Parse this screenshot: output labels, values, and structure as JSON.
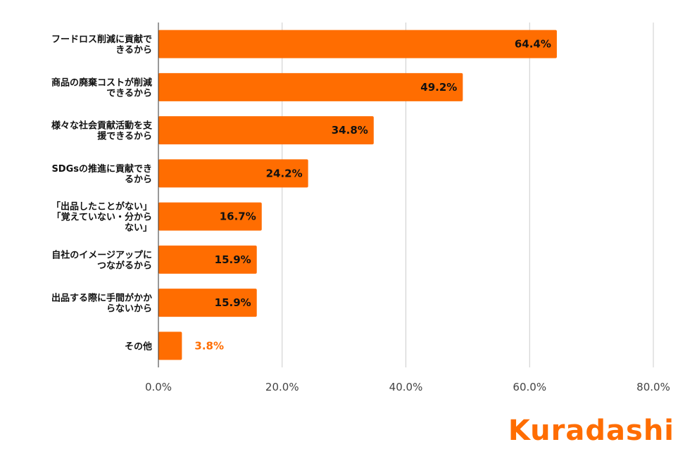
{
  "chart_data": {
    "type": "bar",
    "orientation": "horizontal",
    "categories": [
      [
        "フードロス削減に貢献で",
        "きるから"
      ],
      [
        "商品の廃棄コストが削減",
        "できるから"
      ],
      [
        "様々な社会貢献活動を支",
        "援できるから"
      ],
      [
        "SDGsの推進に貢献でき",
        "るから"
      ],
      [
        "「出品したことがない」",
        "「覚えていない・分から",
        "ない」"
      ],
      [
        "自社のイメージアップに",
        "つながるから"
      ],
      [
        "出品する際に手間がかか",
        "らないから"
      ],
      [
        "その他"
      ]
    ],
    "values": [
      64.4,
      49.2,
      34.8,
      24.2,
      16.7,
      15.9,
      15.9,
      3.8
    ],
    "value_labels": [
      "64.4%",
      "49.2%",
      "34.8%",
      "24.2%",
      "16.7%",
      "15.9%",
      "15.9%",
      "3.8%"
    ],
    "xlim": [
      0,
      80
    ],
    "xticks": [
      0,
      20,
      40,
      60,
      80
    ],
    "xtick_labels": [
      "0.0%",
      "20.0%",
      "40.0%",
      "60.0%",
      "80.0%"
    ],
    "grid": true,
    "legend": "none",
    "bar_color": "#ff6d01",
    "outside_label_color": "#ff6d01",
    "inside_label_color": "#111111"
  },
  "logo": {
    "text": "Kuradashi",
    "color": "#ff6d01"
  }
}
